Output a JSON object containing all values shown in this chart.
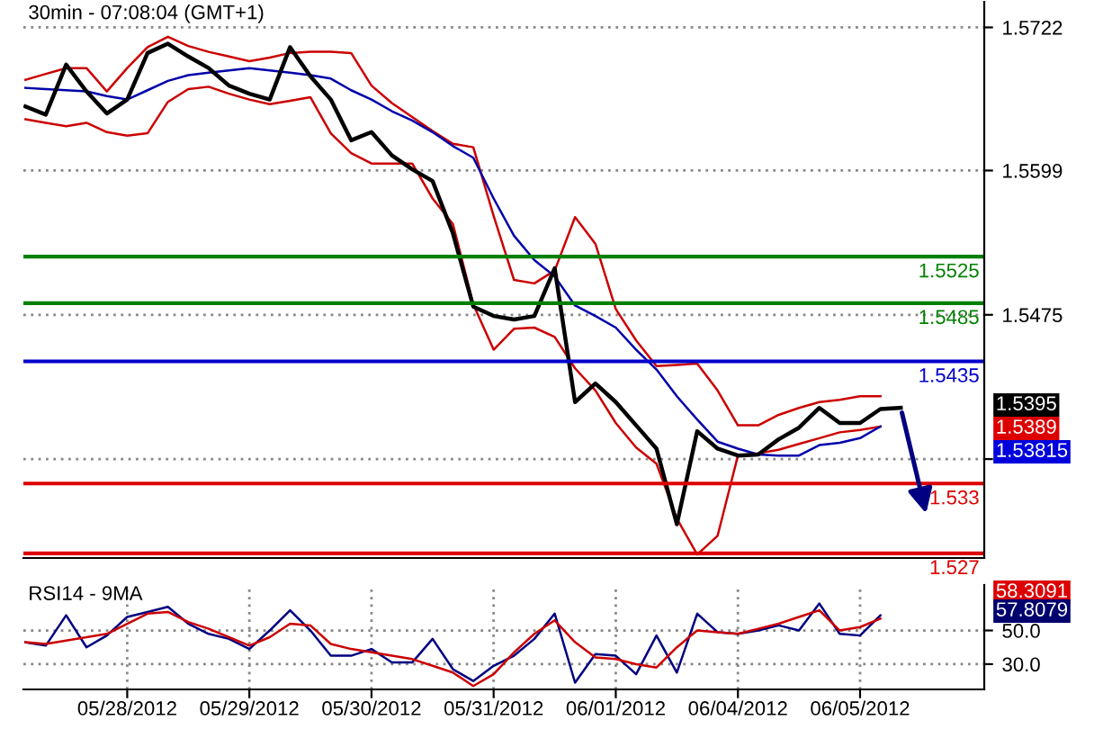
{
  "chart_data": [
    {
      "type": "line",
      "title": "30min - 07:08:04 (GMT+1)",
      "tick_labels": "y",
      "grid": "y",
      "legend": false,
      "categories": [
        null,
        null,
        null,
        null,
        null,
        null,
        null,
        null,
        null,
        null,
        null,
        null,
        null,
        null,
        null,
        null,
        null,
        null,
        null,
        null,
        null,
        null,
        null,
        null,
        null,
        null,
        null,
        null,
        null,
        null,
        null,
        null,
        null,
        null,
        null,
        null,
        null,
        null,
        null,
        null,
        null,
        null,
        null,
        null,
        null,
        null,
        null,
        null
      ],
      "ylim": [
        1.5266,
        1.5744
      ],
      "yticks": [
        1.5722,
        1.5599,
        1.5475,
        {
          "value": 1.5351,
          "label": null
        }
      ],
      "series": [
        {
          "color": "#cc0000",
          "values": [
            1.5677,
            1.5682,
            1.5687,
            1.5687,
            1.5667,
            1.5687,
            1.5705,
            1.5714,
            1.5706,
            1.5701,
            1.5697,
            1.5693,
            1.5696,
            1.57,
            1.5701,
            1.5701,
            1.57,
            1.5672,
            1.5657,
            1.5645,
            1.5633,
            1.5622,
            1.5619,
            1.556,
            1.5505,
            1.5502,
            1.5513,
            1.5559,
            1.5536,
            1.548,
            1.5453,
            1.5431,
            1.5432,
            1.5433,
            1.541,
            1.538,
            1.538,
            1.5389,
            1.5395,
            1.54,
            1.5402,
            1.5405,
            1.5405,
            null,
            null,
            null,
            null,
            null
          ]
        },
        {
          "color": "#cc0000",
          "values": [
            1.5643,
            1.564,
            1.5637,
            1.564,
            1.5632,
            1.5629,
            1.5631,
            1.5658,
            1.5669,
            1.5671,
            1.5665,
            1.566,
            1.5656,
            1.5659,
            1.5662,
            1.5631,
            1.5614,
            1.5605,
            1.5605,
            1.5605,
            1.5575,
            1.5553,
            1.5484,
            1.5445,
            1.5463,
            1.5464,
            1.5456,
            1.5429,
            1.541,
            1.5382,
            1.5361,
            1.5347,
            1.53,
            1.5269,
            1.5285,
            1.5354,
            1.5356,
            1.5359,
            1.5364,
            1.5369,
            1.5374,
            1.5376,
            1.5379,
            null,
            null,
            null,
            null,
            null
          ]
        },
        {
          "color": "#0000aa",
          "values": [
            1.567,
            1.5669,
            1.5668,
            1.5667,
            1.5663,
            1.566,
            1.5668,
            1.5676,
            1.5681,
            1.5683,
            1.5685,
            1.5687,
            1.5685,
            1.5683,
            1.5681,
            1.5678,
            1.5668,
            1.566,
            1.565,
            1.5642,
            1.5632,
            1.562,
            1.561,
            1.5575,
            1.5543,
            1.5522,
            1.5508,
            1.5483,
            1.5474,
            1.5464,
            1.5445,
            1.5428,
            1.5405,
            1.5385,
            1.5366,
            1.536,
            1.5355,
            1.5354,
            1.5354,
            1.5363,
            1.5365,
            1.5369,
            1.5379,
            null,
            null,
            null,
            null,
            null
          ]
        },
        {
          "color": "#000000",
          "values": [
            1.5654,
            1.5647,
            1.569,
            1.5667,
            1.5648,
            1.566,
            1.57,
            1.5708,
            1.5697,
            1.5687,
            1.5672,
            1.5665,
            1.566,
            1.5705,
            1.568,
            1.566,
            1.5625,
            1.5632,
            1.5612,
            1.56,
            1.559,
            1.5545,
            1.5482,
            1.5474,
            1.5471,
            1.5474,
            1.5515,
            1.54,
            1.5416,
            1.54,
            1.538,
            1.536,
            1.5295,
            1.5375,
            1.536,
            1.5354,
            1.5355,
            1.5368,
            1.5378,
            1.5395,
            1.5382,
            1.5382,
            1.5394,
            1.5395,
            null,
            null,
            null,
            null
          ]
        }
      ],
      "ref_lines": [
        {
          "axis": "y",
          "value": 1.5525,
          "label": "1.5525",
          "color": "#008000"
        },
        {
          "axis": "y",
          "value": 1.5485,
          "label": "1.5485",
          "color": "#008000"
        },
        {
          "axis": "y",
          "value": 1.5435,
          "label": "1.5435",
          "color": "#0000cc"
        },
        {
          "axis": "y",
          "value": 1.533,
          "label": "1.533",
          "color": "#dd0000"
        },
        {
          "axis": "y",
          "value": 1.527,
          "label": "1.527",
          "color": "#dd0000"
        }
      ],
      "annotations": [
        "1.5395",
        "1.5389",
        "1.53815"
      ]
    },
    {
      "type": "line",
      "title": "RSI14 - 9MA",
      "grid": true,
      "legend": false,
      "categories": [
        null,
        null,
        null,
        null,
        null,
        "05/28/2012",
        null,
        null,
        null,
        null,
        null,
        "05/29/2012",
        null,
        null,
        null,
        null,
        null,
        "05/30/2012",
        null,
        null,
        null,
        null,
        null,
        "05/31/2012",
        null,
        null,
        null,
        null,
        null,
        "06/01/2012",
        null,
        null,
        null,
        null,
        null,
        "06/04/2012",
        null,
        null,
        null,
        null,
        null,
        "06/05/2012",
        null,
        null,
        null,
        null,
        null,
        null
      ],
      "ylim": [
        15,
        77
      ],
      "yticks": [
        {
          "value": 30,
          "label": "30.0"
        },
        {
          "value": 50,
          "label": "50.0"
        }
      ],
      "series": [
        {
          "color": "#000080",
          "values": [
            43,
            41,
            59,
            40,
            47,
            58,
            61,
            64,
            54,
            48,
            45,
            39,
            50,
            62,
            50,
            35,
            35,
            39,
            31,
            31,
            45,
            27,
            20,
            29,
            35,
            45,
            60,
            19,
            36,
            35,
            24,
            47,
            25,
            60,
            49,
            48,
            50,
            53,
            50,
            66,
            48,
            47,
            59,
            null,
            null,
            null,
            null,
            null
          ]
        },
        {
          "color": "#cc0000",
          "values": [
            43,
            42,
            44,
            46,
            48,
            54,
            60,
            61,
            55,
            51,
            46,
            41,
            46,
            54,
            53,
            42,
            39,
            37,
            35,
            33,
            29,
            25,
            17,
            24,
            37,
            48,
            56,
            43,
            34,
            33,
            30,
            28,
            40,
            50,
            49,
            48,
            51,
            54,
            58,
            62,
            50,
            52,
            57,
            null,
            null,
            null,
            null,
            null
          ]
        }
      ],
      "annotations": [
        "58.3091",
        "57.8079"
      ]
    }
  ]
}
